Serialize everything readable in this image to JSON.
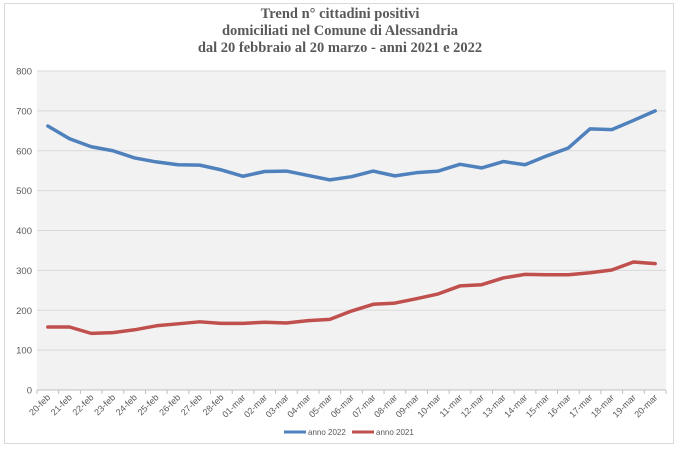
{
  "chart_data": {
    "type": "line",
    "title_lines": [
      "Trend n° cittadini positivi",
      "domiciliati nel Comune di Alessandria",
      "dal 20 febbraio al 20 marzo - anni 2021 e 2022"
    ],
    "xlabel": "",
    "ylabel": "",
    "ylim": [
      0,
      800
    ],
    "yticks": [
      "0",
      "100",
      "200",
      "300",
      "400",
      "500",
      "600",
      "700",
      "800"
    ],
    "grid": true,
    "legend_position": "bottom",
    "categories": [
      "20-feb",
      "21-feb",
      "22-feb",
      "23-feb",
      "24-feb",
      "25-feb",
      "26-feb",
      "27-feb",
      "28-feb",
      "01-mar",
      "02-mar",
      "03-mar",
      "04-mar",
      "05-mar",
      "06-mar",
      "07-mar",
      "08-mar",
      "09-mar",
      "10-mar",
      "11-mar",
      "12-mar",
      "13-mar",
      "14-mar",
      "15-mar",
      "16-mar",
      "17-mar",
      "18-mar",
      "19-mar",
      "20-mar"
    ],
    "series": [
      {
        "name": "anno 2022",
        "color": "#4f81bd",
        "values": [
          662,
          630,
          610,
          600,
          582,
          572,
          565,
          564,
          552,
          536,
          548,
          549,
          538,
          527,
          535,
          549,
          537,
          545,
          549,
          566,
          557,
          573,
          565,
          587,
          607,
          655,
          653,
          676,
          700
        ]
      },
      {
        "name": "anno 2021",
        "color": "#c0504d",
        "values": [
          158,
          158,
          142,
          144,
          151,
          161,
          166,
          171,
          167,
          167,
          170,
          168,
          174,
          177,
          198,
          215,
          218,
          229,
          241,
          261,
          264,
          281,
          290,
          289,
          289,
          294,
          301,
          321,
          317
        ]
      }
    ]
  }
}
